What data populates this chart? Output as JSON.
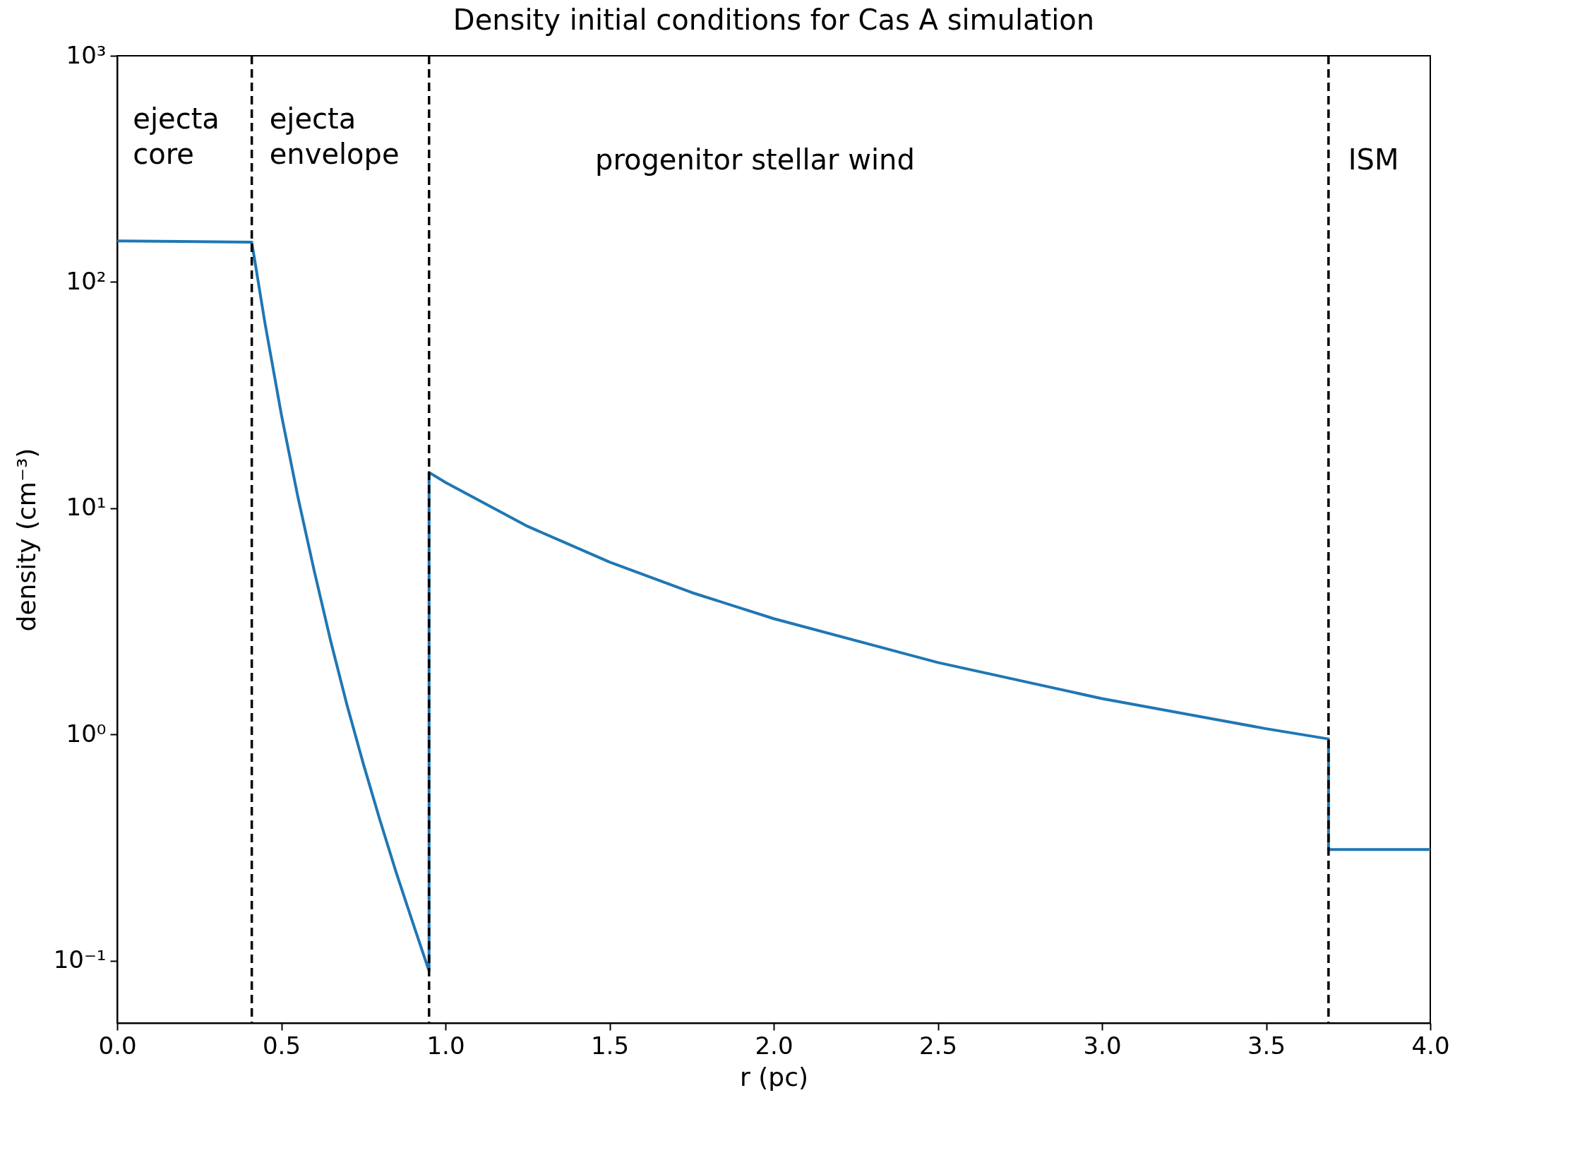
{
  "chart_data": {
    "type": "line",
    "title": "Density initial conditions for Cas A simulation",
    "xlabel": "r (pc)",
    "ylabel": "density (cm⁻³)",
    "x": [
      0,
      0.41,
      0.45,
      0.5,
      0.55,
      0.6,
      0.65,
      0.7,
      0.75,
      0.8,
      0.85,
      0.9,
      0.95,
      0.95,
      1.0,
      1.25,
      1.5,
      1.75,
      2.0,
      2.5,
      3.0,
      3.5,
      3.69,
      3.69,
      4.0
    ],
    "series": [
      {
        "color": "#1f77b4",
        "values": [
          152,
          150,
          66,
          26,
          11.3,
          5.3,
          2.6,
          1.35,
          0.74,
          0.42,
          0.245,
          0.148,
          0.09,
          14.4,
          13.0,
          8.32,
          5.78,
          4.24,
          3.25,
          2.08,
          1.44,
          1.06,
          0.955,
          0.31,
          0.31
        ]
      }
    ],
    "log": "y",
    "xlim": [
      0,
      4
    ],
    "ylim": [
      0.053,
      1000
    ],
    "xticks": [
      {
        "value": 0,
        "label": "0.0"
      },
      0.5,
      {
        "value": 1,
        "label": "1.0"
      },
      1.5,
      {
        "value": 2,
        "label": "2.0"
      },
      2.5,
      {
        "value": 3,
        "label": "3.0"
      },
      3.5,
      {
        "value": 4,
        "label": "4.0"
      }
    ],
    "yticks": [
      {
        "value": 0.1,
        "label": "10⁻¹"
      },
      {
        "value": 1,
        "label": "10⁰"
      },
      {
        "value": 10,
        "label": "10¹"
      },
      {
        "value": 100,
        "label": "10²"
      },
      {
        "value": 1000,
        "label": "10³"
      }
    ],
    "ref_lines": [
      {
        "axis": "x",
        "value": 0.41,
        "color": "#000000",
        "line_style": "dashed"
      },
      {
        "axis": "x",
        "value": 0.95,
        "color": "#000000",
        "line_style": "dashed"
      },
      {
        "axis": "x",
        "value": 3.69,
        "color": "#000000",
        "line_style": "dashed"
      }
    ],
    "annotations": [
      "ejecta\ncore",
      "ejecta\nenvelope",
      "progenitor stellar wind",
      "ISM"
    ],
    "grid": false,
    "marker": "none",
    "line_style": "solid"
  }
}
